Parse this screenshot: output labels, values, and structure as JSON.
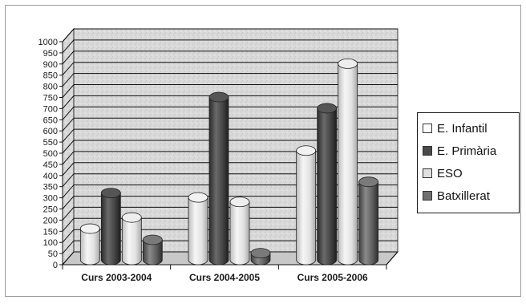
{
  "chart_data": {
    "type": "bar",
    "title": "",
    "xlabel": "",
    "ylabel": "",
    "ylim": [
      0,
      1000
    ],
    "y_ticks": [
      0,
      50,
      100,
      150,
      200,
      250,
      300,
      350,
      400,
      450,
      500,
      550,
      600,
      650,
      700,
      750,
      800,
      850,
      900,
      950,
      1000
    ],
    "grid": true,
    "three_d": true,
    "legend_position": "right",
    "categories": [
      "Curs 2003-2004",
      "Curs 2004-2005",
      "Curs 2005-2006"
    ],
    "series": [
      {
        "name": "E. Infantil",
        "values": [
          140,
          280,
          490
        ],
        "color": "#e6e6e6"
      },
      {
        "name": "E. Primària",
        "values": [
          300,
          730,
          680
        ],
        "color": "#4a4a4a"
      },
      {
        "name": "ESO",
        "values": [
          190,
          260,
          880
        ],
        "color": "#dcdcdc"
      },
      {
        "name": "Batxillerat",
        "values": [
          90,
          30,
          350
        ],
        "color": "#6f6f6f"
      }
    ]
  }
}
